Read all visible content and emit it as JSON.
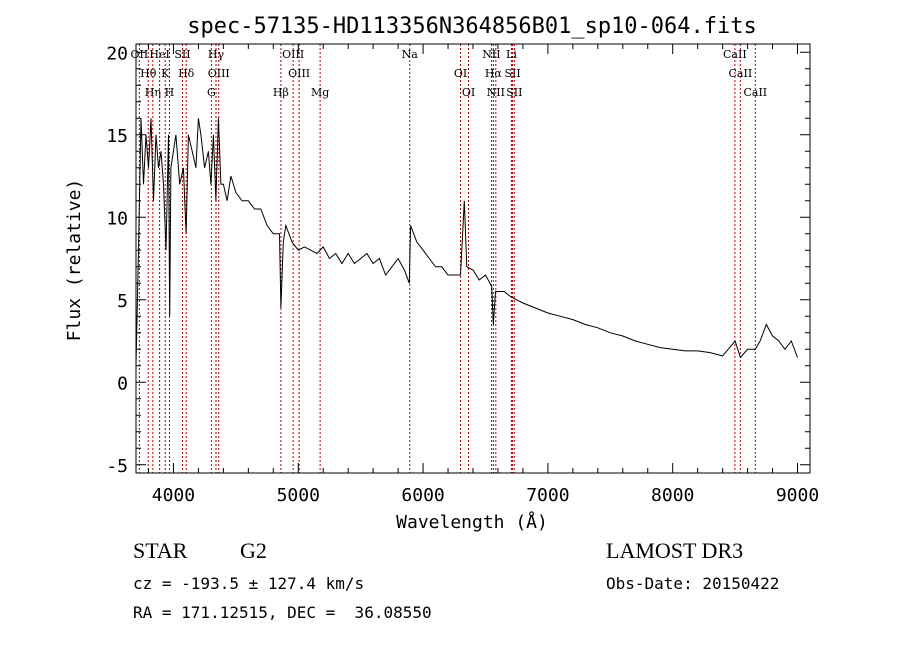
{
  "chart_data": {
    "type": "line",
    "title": "spec-57135-HD113356N364856B01_sp10-064.fits",
    "xlabel": "Wavelength (Å)",
    "ylabel": "Flux (relative)",
    "xlim": [
      3700,
      9100
    ],
    "ylim": [
      -5.5,
      20.5
    ],
    "xticks": [
      4000,
      5000,
      6000,
      7000,
      8000,
      9000
    ],
    "yticks": [
      -5,
      0,
      5,
      10,
      15,
      20
    ],
    "series": [
      {
        "name": "flux",
        "x": [
          3700,
          3720,
          3740,
          3760,
          3780,
          3800,
          3820,
          3840,
          3860,
          3880,
          3900,
          3920,
          3940,
          3960,
          3970,
          3980,
          4000,
          4020,
          4050,
          4080,
          4101,
          4120,
          4150,
          4180,
          4200,
          4220,
          4250,
          4280,
          4300,
          4320,
          4340,
          4360,
          4380,
          4400,
          4430,
          4460,
          4500,
          4550,
          4600,
          4650,
          4700,
          4750,
          4800,
          4850,
          4861,
          4880,
          4900,
          4950,
          5000,
          5050,
          5100,
          5150,
          5200,
          5250,
          5300,
          5350,
          5400,
          5450,
          5500,
          5550,
          5600,
          5650,
          5700,
          5750,
          5800,
          5850,
          5890,
          5900,
          5950,
          6000,
          6050,
          6100,
          6150,
          6200,
          6250,
          6300,
          6330,
          6350,
          6400,
          6450,
          6500,
          6550,
          6563,
          6580,
          6600,
          6650,
          6700,
          6750,
          6800,
          6900,
          7000,
          7100,
          7200,
          7300,
          7400,
          7500,
          7600,
          7700,
          7800,
          7900,
          8000,
          8100,
          8200,
          8300,
          8400,
          8500,
          8542,
          8600,
          8662,
          8700,
          8750,
          8800,
          8850,
          8900,
          8950,
          9000
        ],
        "values": [
          1,
          8,
          16,
          12,
          15,
          13,
          16,
          11,
          15,
          13,
          14,
          12,
          8,
          15,
          4,
          13,
          14,
          15,
          12,
          13,
          9,
          15,
          14,
          13,
          16,
          15,
          13,
          14,
          12,
          15,
          11,
          16,
          12,
          12,
          11,
          12.5,
          11.5,
          11,
          11,
          10.5,
          10.5,
          9.5,
          9,
          9,
          4.5,
          8.5,
          9.5,
          8.5,
          8,
          8.2,
          8,
          7.8,
          8.2,
          7.5,
          7.8,
          7.2,
          7.8,
          7.2,
          7.5,
          7.8,
          7.2,
          7.5,
          6.5,
          7,
          7.5,
          6.8,
          6,
          9.5,
          8.5,
          8,
          7.5,
          7,
          7,
          6.5,
          6.5,
          6.5,
          11,
          7,
          6.8,
          6.2,
          6.5,
          5.8,
          3.5,
          5.5,
          5.5,
          5.5,
          5.2,
          5,
          4.8,
          4.5,
          4.2,
          4,
          3.8,
          3.5,
          3.3,
          3,
          2.8,
          2.5,
          2.3,
          2.1,
          2,
          1.9,
          1.9,
          1.8,
          1.6,
          2.5,
          1.5,
          2,
          2,
          2.5,
          3.5,
          2.8,
          2.5,
          2,
          2.5,
          1.5
        ]
      }
    ],
    "lines": [
      {
        "label": "OII",
        "x": 3727
      },
      {
        "label": "Hθ",
        "x": 3798
      },
      {
        "label": "Hη",
        "x": 3835
      },
      {
        "label": "HeI",
        "x": 3889
      },
      {
        "label": "K",
        "x": 3934
      },
      {
        "label": "H",
        "x": 3968
      },
      {
        "label": "SII",
        "x": 4072
      },
      {
        "label": "Hδ",
        "x": 4102
      },
      {
        "label": "G",
        "x": 4304
      },
      {
        "label": "Hγ",
        "x": 4341
      },
      {
        "label": "OIII",
        "x": 4363
      },
      {
        "label": "Hβ",
        "x": 4861
      },
      {
        "label": "OIII",
        "x": 4959
      },
      {
        "label": "OIII",
        "x": 5007
      },
      {
        "label": "Mg",
        "x": 5175
      },
      {
        "label": "Na",
        "x": 5893
      },
      {
        "label": "OI",
        "x": 6300
      },
      {
        "label": "OI",
        "x": 6364
      },
      {
        "label": "NII",
        "x": 6548
      },
      {
        "label": "Hα",
        "x": 6563
      },
      {
        "label": "NII",
        "x": 6583
      },
      {
        "label": "Li",
        "x": 6708
      },
      {
        "label": "SII",
        "x": 6717
      },
      {
        "label": "SII",
        "x": 6731
      },
      {
        "label": "CaII",
        "x": 8498
      },
      {
        "label": "CaII",
        "x": 8542
      },
      {
        "label": "CaII",
        "x": 8662
      }
    ]
  },
  "info": {
    "object_class": "STAR",
    "subclass": "G2",
    "survey": "LAMOST DR3",
    "redshift_text": "cz = -193.5 ± 127.4 km/s",
    "obs_date_text": "Obs-Date: 20150422",
    "coords_text": "RA = 171.12515, DEC =  36.08550"
  }
}
